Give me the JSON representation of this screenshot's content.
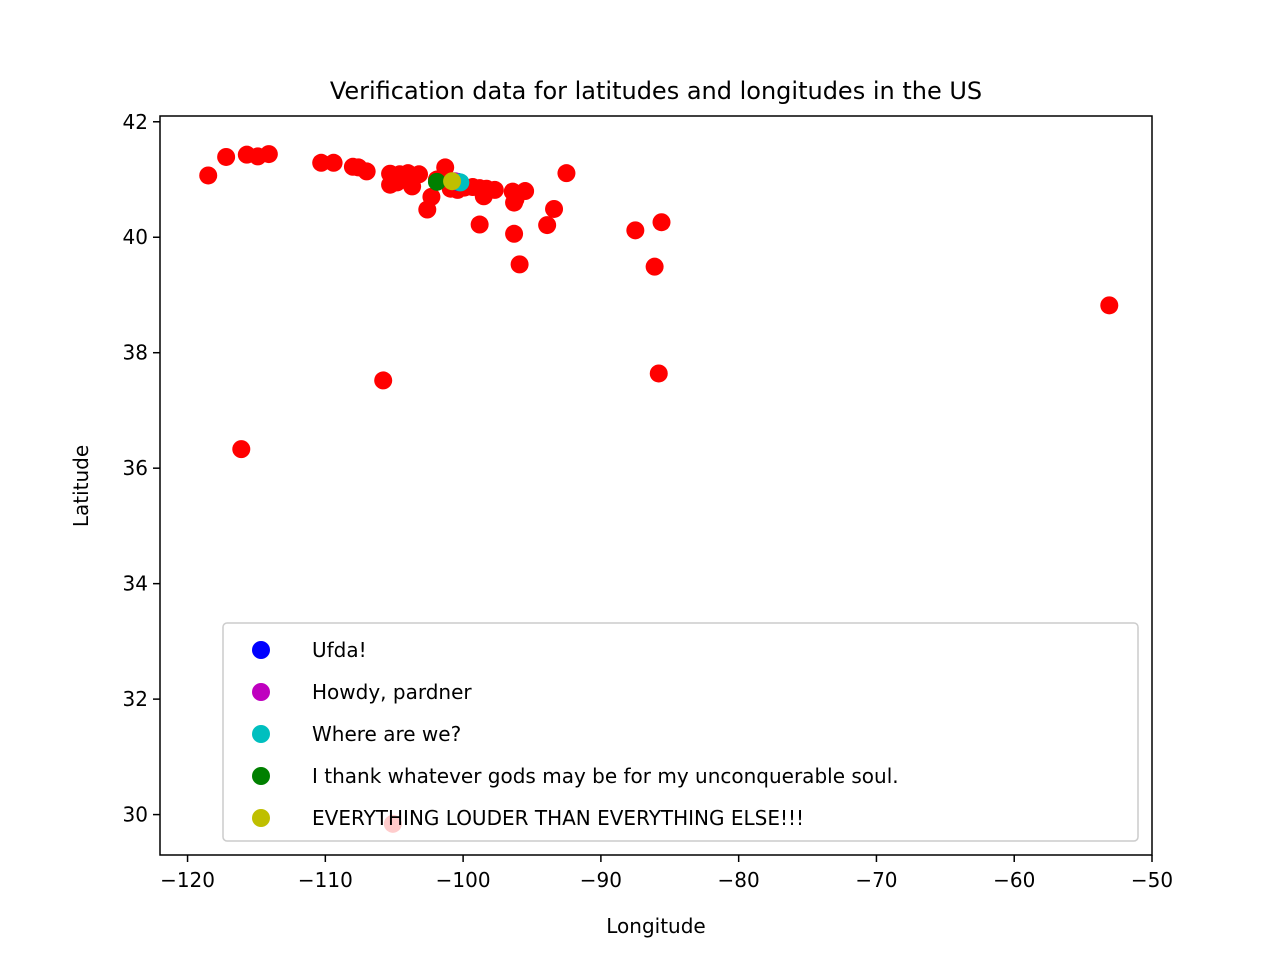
{
  "chart_data": {
    "type": "scatter",
    "title": "Verification data for latitudes and longitudes in the US",
    "xlabel": "Longitude",
    "ylabel": "Latitude",
    "xlim": [
      -122,
      -50
    ],
    "ylim": [
      29.3,
      42.1
    ],
    "xticks": [
      -120,
      -110,
      -100,
      -90,
      -80,
      -70,
      -60,
      -50
    ],
    "xtick_labels": [
      "−120",
      "−110",
      "−100",
      "−90",
      "−80",
      "−70",
      "−60",
      "−50"
    ],
    "yticks": [
      30,
      32,
      34,
      36,
      38,
      40,
      42
    ],
    "ytick_labels": [
      "30",
      "32",
      "34",
      "36",
      "38",
      "40",
      "42"
    ],
    "grid": false,
    "legend_position": "lower-right",
    "series": [
      {
        "color": "#ff0000",
        "points": [
          [
            -118.5,
            41.07
          ],
          [
            -117.2,
            41.39
          ],
          [
            -115.7,
            41.43
          ],
          [
            -114.9,
            41.4
          ],
          [
            -114.1,
            41.44
          ],
          [
            -110.3,
            41.29
          ],
          [
            -109.4,
            41.29
          ],
          [
            -108.0,
            41.22
          ],
          [
            -107.6,
            41.21
          ],
          [
            -107.0,
            41.14
          ],
          [
            -105.3,
            41.1
          ],
          [
            -104.6,
            41.09
          ],
          [
            -104.0,
            41.11
          ],
          [
            -103.2,
            41.09
          ],
          [
            -105.3,
            40.91
          ],
          [
            -104.8,
            40.95
          ],
          [
            -103.7,
            40.88
          ],
          [
            -102.6,
            40.48
          ],
          [
            -102.3,
            40.7
          ],
          [
            -101.9,
            41.0
          ],
          [
            -101.3,
            41.21
          ],
          [
            -100.9,
            40.84
          ],
          [
            -100.4,
            40.82
          ],
          [
            -99.9,
            40.86
          ],
          [
            -99.3,
            40.87
          ],
          [
            -98.8,
            40.85
          ],
          [
            -98.5,
            40.71
          ],
          [
            -98.3,
            40.84
          ],
          [
            -97.7,
            40.82
          ],
          [
            -96.4,
            40.79
          ],
          [
            -96.2,
            40.66
          ],
          [
            -96.3,
            40.6
          ],
          [
            -95.5,
            40.8
          ],
          [
            -98.8,
            40.22
          ],
          [
            -96.3,
            40.06
          ],
          [
            -95.9,
            39.53
          ],
          [
            -93.4,
            40.49
          ],
          [
            -93.9,
            40.21
          ],
          [
            -92.5,
            41.11
          ],
          [
            -87.5,
            40.12
          ],
          [
            -85.6,
            40.26
          ],
          [
            -86.1,
            39.49
          ],
          [
            -85.8,
            37.64
          ],
          [
            -105.8,
            37.52
          ],
          [
            -116.1,
            36.33
          ],
          [
            -53.1,
            38.82
          ],
          [
            -105.1,
            29.84
          ]
        ]
      },
      {
        "name": "Ufda!",
        "color": "#0000ff",
        "points": [
          [
            -100.4,
            40.96
          ]
        ]
      },
      {
        "name": "Howdy, pardner",
        "color": "#bf00bf",
        "points": [
          [
            -100.6,
            40.97
          ]
        ]
      },
      {
        "name": "Where are we?",
        "color": "#00bfbf",
        "points": [
          [
            -100.2,
            40.95
          ]
        ]
      },
      {
        "name": "I thank whatever gods may be for my unconquerable soul.",
        "color": "#008000",
        "points": [
          [
            -101.9,
            40.96
          ]
        ]
      },
      {
        "name": "EVERYTHING LOUDER THAN EVERYTHING ELSE!!!",
        "color": "#bfbf00",
        "points": [
          [
            -100.8,
            40.97
          ]
        ]
      }
    ]
  }
}
